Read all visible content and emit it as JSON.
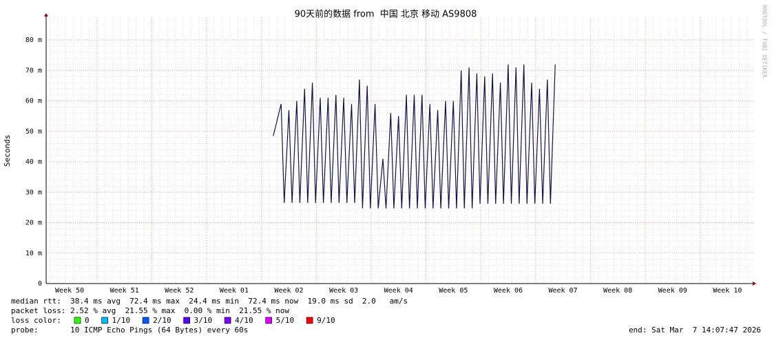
{
  "chart_data": {
    "type": "line",
    "title": "90天前的数据 from  中国 北京 移动 AS9808",
    "ylabel": "Seconds",
    "watermark": "RRDTOOL / TOBI OETIKER",
    "xlim": [
      0,
      90.4
    ],
    "xticks": [
      {
        "value": 3,
        "label": "Week 50"
      },
      {
        "value": 10,
        "label": "Week 51"
      },
      {
        "value": 17,
        "label": "Week 52"
      },
      {
        "value": 24,
        "label": "Week 01"
      },
      {
        "value": 31,
        "label": "Week 02"
      },
      {
        "value": 38,
        "label": "Week 03"
      },
      {
        "value": 45,
        "label": "Week 04"
      },
      {
        "value": 52,
        "label": "Week 05"
      },
      {
        "value": 59,
        "label": "Week 06"
      },
      {
        "value": 66,
        "label": "Week 07"
      },
      {
        "value": 73,
        "label": "Week 08"
      },
      {
        "value": 80,
        "label": "Week 09"
      },
      {
        "value": 87,
        "label": "Week 10"
      }
    ],
    "ylim": [
      0,
      0.0875
    ],
    "yticks": [
      0,
      {
        "value": 0.01,
        "label": "10 m"
      },
      {
        "value": 0.02,
        "label": "20 m"
      },
      {
        "value": 0.03,
        "label": "30 m"
      },
      {
        "value": 0.04,
        "label": "40 m"
      },
      {
        "value": 0.05,
        "label": "50 m"
      },
      {
        "value": 0.06,
        "label": "60 m"
      },
      {
        "value": 0.07,
        "label": "70 m"
      },
      {
        "value": 0.08,
        "label": "80 m"
      }
    ],
    "grid": true,
    "x": [
      29,
      30,
      30.4,
      31,
      31.4,
      32,
      32.4,
      33,
      33.4,
      34,
      34.4,
      35,
      35.4,
      36,
      36.4,
      37,
      37.4,
      38,
      38.4,
      39,
      39.4,
      40,
      40.4,
      41,
      41.4,
      42,
      42.4,
      43,
      43.4,
      44,
      44.4,
      45,
      45.4,
      46,
      46.4,
      47,
      47.4,
      48,
      48.4,
      49,
      49.4,
      50,
      50.4,
      51,
      51.4,
      52,
      52.4,
      53,
      53.4,
      54,
      54.4,
      55,
      55.4,
      56,
      56.4,
      57,
      57.4,
      58,
      58.4,
      59,
      59.4,
      60,
      60.4,
      61,
      61.4,
      62,
      62.4,
      63,
      63.4,
      64,
      64.4,
      65
    ],
    "series": [
      {
        "name": "median rtt",
        "color": "#10104a",
        "values": [
          0.0485,
          0.059,
          0.0265,
          0.057,
          0.0265,
          0.06,
          0.0265,
          0.064,
          0.0265,
          0.066,
          0.0265,
          0.061,
          0.0265,
          0.061,
          0.0265,
          0.062,
          0.0265,
          0.061,
          0.0265,
          0.059,
          0.0265,
          0.067,
          0.0247,
          0.065,
          0.0247,
          0.059,
          0.0247,
          0.041,
          0.0247,
          0.056,
          0.0247,
          0.055,
          0.0247,
          0.062,
          0.0247,
          0.062,
          0.0247,
          0.062,
          0.0247,
          0.059,
          0.0247,
          0.057,
          0.0247,
          0.06,
          0.0247,
          0.06,
          0.0247,
          0.07,
          0.0247,
          0.071,
          0.0247,
          0.069,
          0.0262,
          0.068,
          0.0262,
          0.069,
          0.0262,
          0.066,
          0.0262,
          0.072,
          0.0262,
          0.071,
          0.0262,
          0.072,
          0.0262,
          0.066,
          0.0262,
          0.064,
          0.0262,
          0.067,
          0.0262,
          0.072
        ]
      }
    ],
    "stats": [
      "median rtt:  38.4 ms avg  72.4 ms max  24.4 ms min  72.4 ms now  19.0 ms sd  2.0   am/s",
      "packet loss: 2.52 % avg  21.55 % max  0.00 % min  21.55 % now"
    ],
    "loss_legend": {
      "title": "loss color:",
      "items": [
        {
          "label": "0",
          "color": "#26ff00"
        },
        {
          "label": "1/10",
          "color": "#00b8ff"
        },
        {
          "label": "2/10",
          "color": "#0059ff"
        },
        {
          "label": "3/10",
          "color": "#5e00ff"
        },
        {
          "label": "4/10",
          "color": "#7e00ff"
        },
        {
          "label": "5/10",
          "color": "#dd00ff"
        },
        {
          "label": "9/10",
          "color": "#ff0000"
        }
      ]
    },
    "probe": "probe:       10 ICMP Echo Pings (64 Bytes) every 60s",
    "end": "end: Sat Mar  7 14:07:47 2026"
  }
}
